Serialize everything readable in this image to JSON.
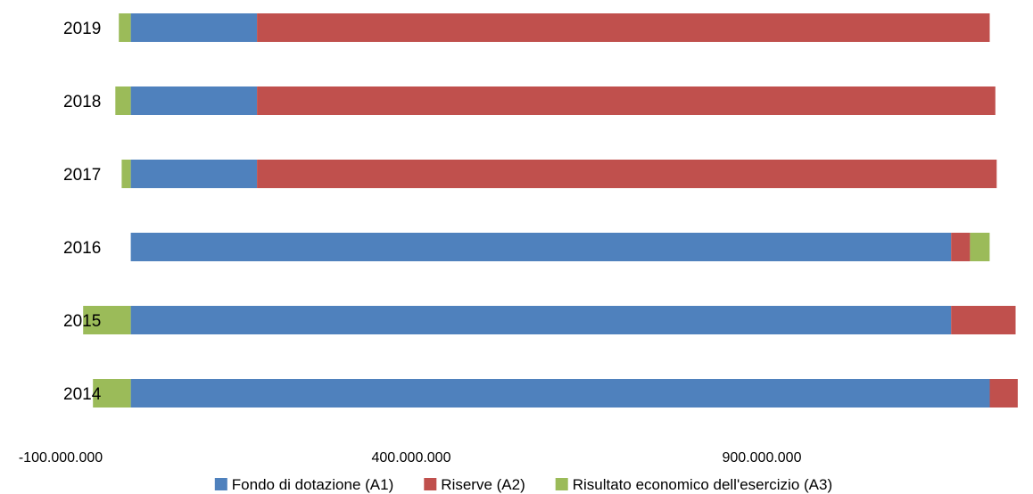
{
  "chart_data": {
    "type": "bar",
    "orientation": "horizontal",
    "stacked": true,
    "categories": [
      "2019",
      "2018",
      "2017",
      "2016",
      "2015",
      "2014"
    ],
    "series": [
      {
        "name": "Fondo di dotazione (A1)",
        "color": "#4f81bd",
        "values": [
          180000000,
          180000000,
          180000000,
          1170000000,
          1170000000,
          1225000000
        ]
      },
      {
        "name": "Riserve (A2)",
        "color": "#c0504d",
        "values": [
          1045000000,
          1053000000,
          1055000000,
          27000000,
          92000000,
          40000000
        ]
      },
      {
        "name": "Risultato economico dell'esercizio (A3)",
        "color": "#9bbb59",
        "values": [
          -17000000,
          -22000000,
          -13000000,
          28000000,
          -68000000,
          -54000000
        ]
      }
    ],
    "xlim": [
      -100000000,
      1300000000
    ],
    "xticks": [
      -100000000,
      400000000,
      900000000
    ],
    "xtick_labels": [
      "-100.000.000",
      "400.000.000",
      "900.000.000"
    ],
    "grid": false,
    "legend_position": "bottom"
  }
}
